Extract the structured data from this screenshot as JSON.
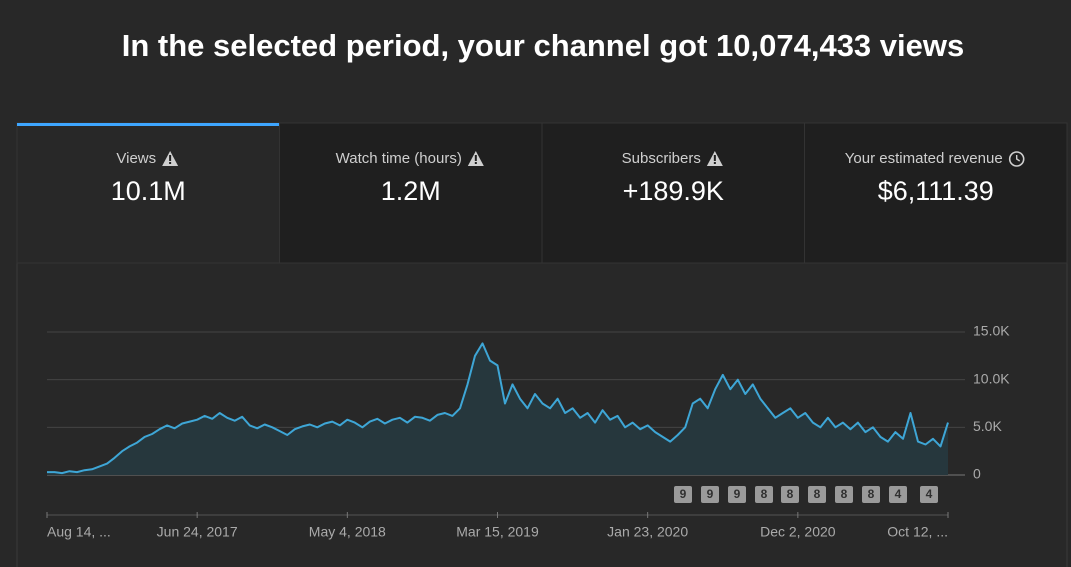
{
  "header": {
    "title": "In the selected period, your channel got 10,074,433 views"
  },
  "tabs": [
    {
      "label": "Views",
      "value": "10.1M",
      "icon": "warning",
      "selected": true
    },
    {
      "label": "Watch time (hours)",
      "value": "1.2M",
      "icon": "warning",
      "selected": false
    },
    {
      "label": "Subscribers",
      "value": "+189.9K",
      "icon": "warning",
      "selected": false
    },
    {
      "label": "Your estimated revenue",
      "value": "$6,111.39",
      "icon": "clock",
      "selected": false
    }
  ],
  "chart_data": {
    "type": "area",
    "categories": [
      "Aug 14, ...",
      null,
      null,
      null,
      null,
      null,
      null,
      null,
      null,
      null,
      null,
      null,
      null,
      null,
      null,
      null,
      null,
      null,
      null,
      null,
      "Jun 24, 2017",
      null,
      null,
      null,
      null,
      null,
      null,
      null,
      null,
      null,
      null,
      null,
      null,
      null,
      null,
      null,
      null,
      null,
      null,
      null,
      "May 4, 2018",
      null,
      null,
      null,
      null,
      null,
      null,
      null,
      null,
      null,
      null,
      null,
      null,
      null,
      null,
      null,
      null,
      null,
      null,
      null,
      "Mar 15, 2019",
      null,
      null,
      null,
      null,
      null,
      null,
      null,
      null,
      null,
      null,
      null,
      null,
      null,
      null,
      null,
      null,
      null,
      null,
      null,
      "Jan 23, 2020",
      null,
      null,
      null,
      null,
      null,
      null,
      null,
      null,
      null,
      null,
      null,
      null,
      null,
      null,
      null,
      null,
      null,
      null,
      null,
      "Dec 2, 2020",
      null,
      null,
      null,
      null,
      null,
      null,
      null,
      null,
      null,
      null,
      null,
      null,
      null,
      null,
      null,
      null,
      null,
      null,
      null,
      "Oct 12, ..."
    ],
    "series": [
      {
        "name": "Views",
        "color": "#3ea6d6",
        "values": [
          300,
          300,
          200,
          400,
          300,
          500,
          600,
          900,
          1200,
          1800,
          2500,
          3000,
          3400,
          4000,
          4300,
          4800,
          5200,
          4900,
          5400,
          5600,
          5800,
          6200,
          5900,
          6500,
          6000,
          5700,
          6100,
          5200,
          4900,
          5300,
          5000,
          4600,
          4200,
          4800,
          5100,
          5300,
          5000,
          5400,
          5600,
          5200,
          5800,
          5500,
          5000,
          5600,
          5900,
          5400,
          5800,
          6000,
          5500,
          6100,
          6000,
          5700,
          6300,
          6500,
          6200,
          7000,
          9500,
          12500,
          13800,
          12000,
          11500,
          7500,
          9500,
          8000,
          7000,
          8500,
          7500,
          7000,
          8000,
          6500,
          7000,
          6000,
          6500,
          5500,
          6800,
          5800,
          6200,
          5000,
          5500,
          4800,
          5200,
          4500,
          4000,
          3500,
          4200,
          5000,
          7500,
          8000,
          7000,
          9000,
          10500,
          9000,
          10000,
          8500,
          9500,
          8000,
          7000,
          6000,
          6500,
          7000,
          6000,
          6500,
          5500,
          5000,
          6000,
          5000,
          5500,
          4800,
          5500,
          4500,
          5000,
          4000,
          3500,
          4500,
          3800,
          6500,
          3500,
          3200,
          3800,
          3000,
          5500
        ]
      }
    ],
    "ylim": [
      0,
      15000
    ],
    "yticks": [
      0,
      {
        "value": 5000,
        "label": "5.0K"
      },
      {
        "value": 10000,
        "label": "10.0K"
      },
      {
        "value": 15000,
        "label": "15.0K"
      }
    ],
    "grid": true,
    "annotations": [
      "9",
      "9",
      "9",
      "8",
      "8",
      "8",
      "8",
      "8",
      "4",
      "4"
    ]
  }
}
